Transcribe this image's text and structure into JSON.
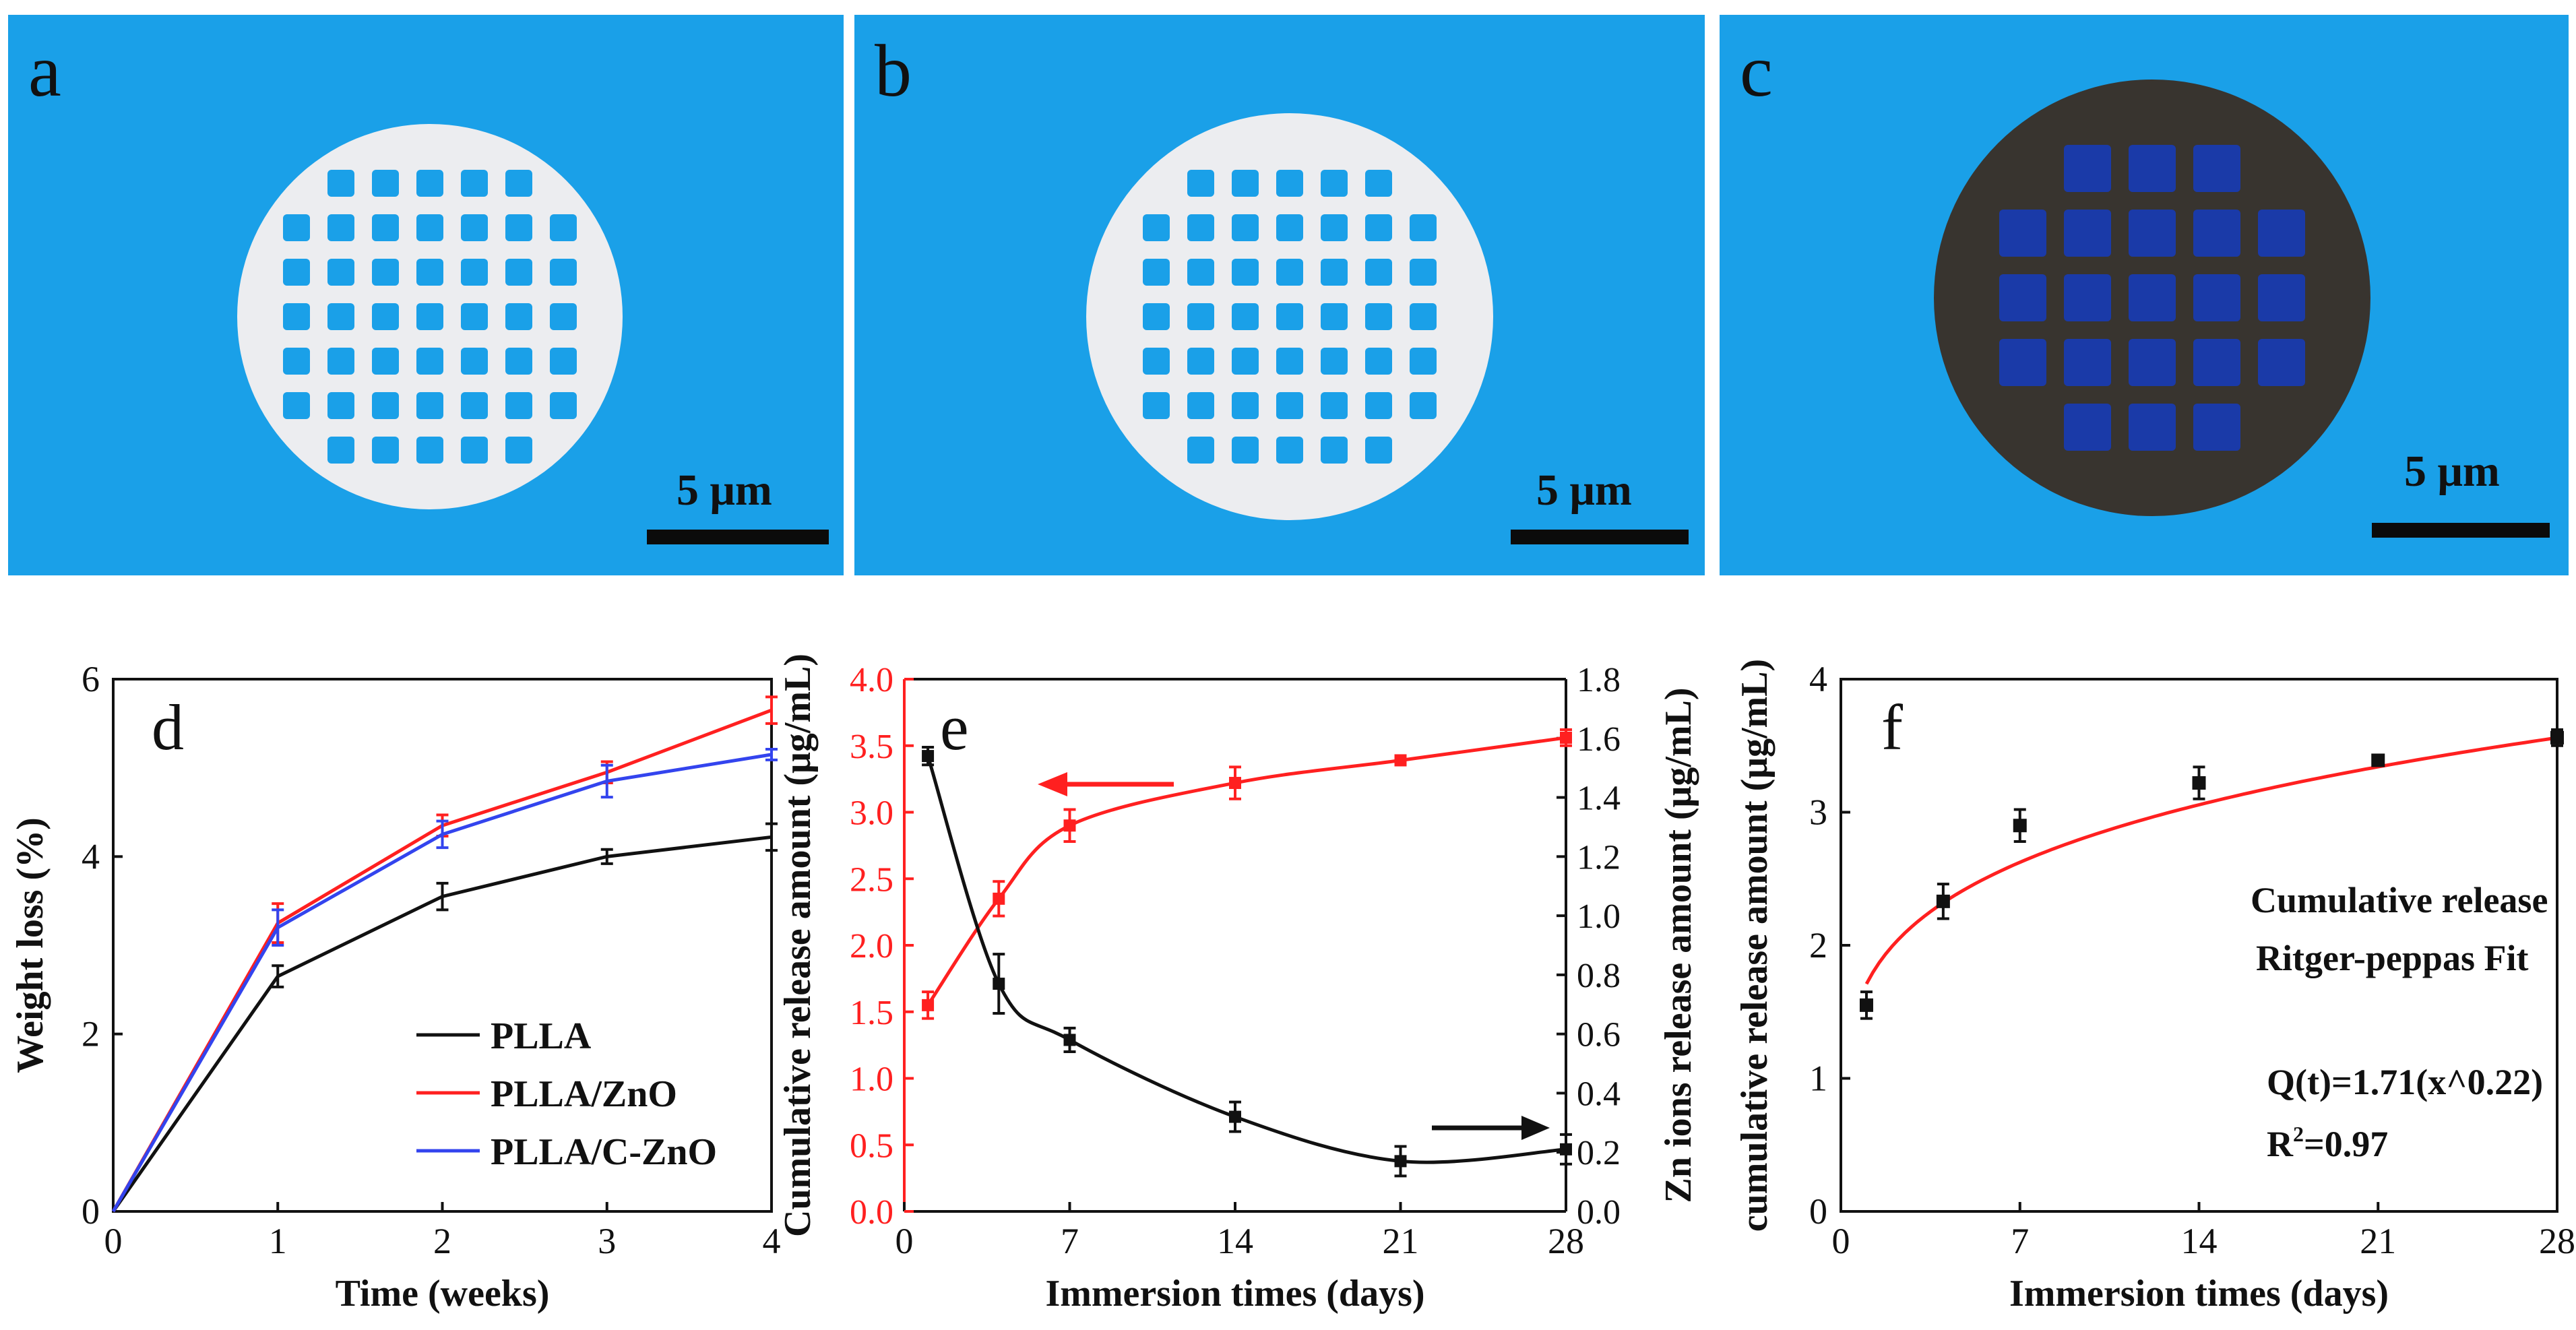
{
  "photos": [
    {
      "letter": "a",
      "scale": "5 μm",
      "material": "white"
    },
    {
      "letter": "b",
      "scale": "5 μm",
      "material": "white"
    },
    {
      "letter": "c",
      "scale": "5 μm",
      "material": "dark"
    }
  ],
  "colors": {
    "photo_bg": "#1aa0e8",
    "scaffold_white": "#ecedf0",
    "scaffold_dark": "#38342f",
    "black": "#111111",
    "red": "#ff2020",
    "blue": "#3344ee"
  },
  "chart_data": [
    {
      "panel": "d",
      "type": "line",
      "xlabel": "Time (weeks)",
      "ylabel": "Weight loss (%)",
      "xlim": [
        0,
        4
      ],
      "ylim": [
        0,
        6
      ],
      "xticks": [
        0,
        1,
        2,
        3,
        4
      ],
      "yticks": [
        0,
        2,
        4,
        6
      ],
      "x": [
        0,
        1,
        2,
        3,
        4
      ],
      "series": [
        {
          "name": "PLLA",
          "color": "#111111",
          "values": [
            0,
            2.65,
            3.55,
            4.0,
            4.22
          ],
          "errors": [
            0,
            0.12,
            0.15,
            0.08,
            0.15
          ]
        },
        {
          "name": "PLLA/ZnO",
          "color": "#ff2020",
          "values": [
            0,
            3.25,
            4.35,
            4.95,
            5.65
          ],
          "errors": [
            0,
            0.22,
            0.12,
            0.12,
            0.15
          ]
        },
        {
          "name": "PLLA/C-ZnO",
          "color": "#3344ee",
          "values": [
            0,
            3.2,
            4.25,
            4.85,
            5.15
          ],
          "errors": [
            0,
            0.2,
            0.15,
            0.18,
            0.06
          ]
        }
      ],
      "legend_position": "lower-right"
    },
    {
      "panel": "e",
      "type": "line",
      "xlabel": "Immersion times (days)",
      "ylabel": "Cumulative release amount (μg/mL)",
      "y2label": "Zn ions release amount (μg/mL)",
      "xlim": [
        0,
        28
      ],
      "ylim": [
        0,
        4
      ],
      "y2lim": [
        0,
        1.8
      ],
      "xticks": [
        0,
        7,
        14,
        21,
        28
      ],
      "yticks": [
        "0.0",
        "0.5",
        "1.0",
        "1.5",
        "2.0",
        "2.5",
        "3.0",
        "3.5",
        "4.0"
      ],
      "y2ticks": [
        "0.0",
        "0.2",
        "0.4",
        "0.6",
        "0.8",
        "1.0",
        "1.2",
        "1.4",
        "1.6",
        "1.8"
      ],
      "series": [
        {
          "name": "Cumulative release",
          "axis": "left",
          "color": "#ff2020",
          "x": [
            1,
            4,
            7,
            14,
            21,
            28
          ],
          "values": [
            1.55,
            2.35,
            2.9,
            3.22,
            3.39,
            3.56
          ],
          "errors": [
            0.1,
            0.13,
            0.12,
            0.12,
            0.03,
            0.06
          ]
        },
        {
          "name": "Zn ions release",
          "axis": "right",
          "color": "#111111",
          "x": [
            1,
            4,
            7,
            14,
            21,
            28
          ],
          "values": [
            1.54,
            0.77,
            0.58,
            0.32,
            0.17,
            0.21
          ],
          "errors": [
            0.03,
            0.1,
            0.04,
            0.05,
            0.05,
            0.05
          ]
        }
      ]
    },
    {
      "panel": "f",
      "type": "scatter",
      "xlabel": "Immersion times (days)",
      "ylabel": "cumulative release amount (μg/mL)",
      "xlim": [
        0,
        28
      ],
      "ylim": [
        0,
        4
      ],
      "xticks": [
        0,
        7,
        14,
        21,
        28
      ],
      "yticks": [
        0,
        1,
        2,
        3,
        4
      ],
      "x": [
        1,
        4,
        7,
        14,
        21,
        28
      ],
      "values": [
        1.55,
        2.33,
        2.9,
        3.22,
        3.39,
        3.56
      ],
      "errors": [
        0.1,
        0.13,
        0.12,
        0.12,
        0.03,
        0.06
      ],
      "fit": {
        "a": 1.71,
        "b": 0.22,
        "color": "#ff2020"
      },
      "annotations": [
        "Cumulative release",
        "Ritger-peppas Fit",
        "Q(t)=1.71(x^0.22)",
        "R",
        "2",
        "=0.97"
      ]
    }
  ]
}
